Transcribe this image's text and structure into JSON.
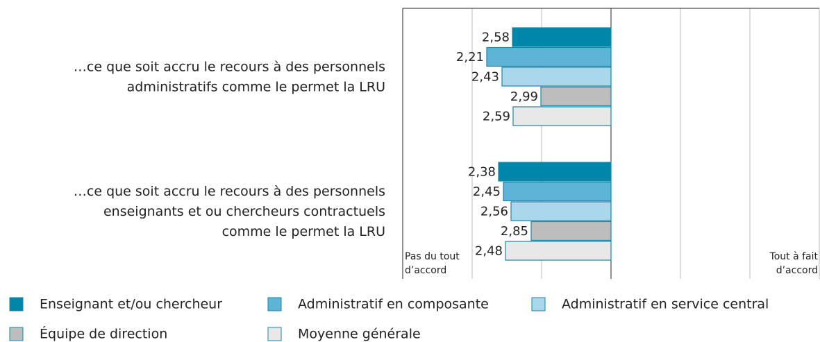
{
  "chart_data": {
    "type": "hbar",
    "categories": [
      [
        "…ce que soit accru le recours à des personnels",
        "administratifs comme le permet la LRU"
      ],
      [
        "…ce que soit accru le recours à des personnels",
        "enseignants et ou chercheurs contractuels",
        "comme le permet la LRU"
      ]
    ],
    "series": [
      {
        "name": "Enseignant et/ou chercheur",
        "color": "#0086a8",
        "values": [
          2.58,
          2.38
        ],
        "value_labels": [
          "2,58",
          "2,38"
        ]
      },
      {
        "name": "Administratif en composante",
        "color": "#5db4d4",
        "values": [
          2.21,
          2.45
        ],
        "value_labels": [
          "2,21",
          "2,45"
        ]
      },
      {
        "name": "Administratif en service central",
        "color": "#aad7eb",
        "values": [
          2.43,
          2.56
        ],
        "value_labels": [
          "2,43",
          "2,56"
        ]
      },
      {
        "name": "Équipe de direction",
        "color": "#bdbdbd",
        "values": [
          2.99,
          2.85
        ],
        "value_labels": [
          "2,99",
          "2,85"
        ]
      },
      {
        "name": "Moyenne générale",
        "color": "#e8e8e8",
        "values": [
          2.59,
          2.48
        ],
        "value_labels": [
          "2,59",
          "2,48"
        ]
      }
    ],
    "xlim": [
      1,
      7
    ],
    "xticks": [
      1,
      2,
      3,
      4,
      5,
      6,
      7
    ],
    "bar_base": 4,
    "grid": true,
    "x_label_left": [
      "Pas du tout",
      "d’accord"
    ],
    "x_label_right": [
      "Tout à fait",
      "d’accord"
    ]
  }
}
